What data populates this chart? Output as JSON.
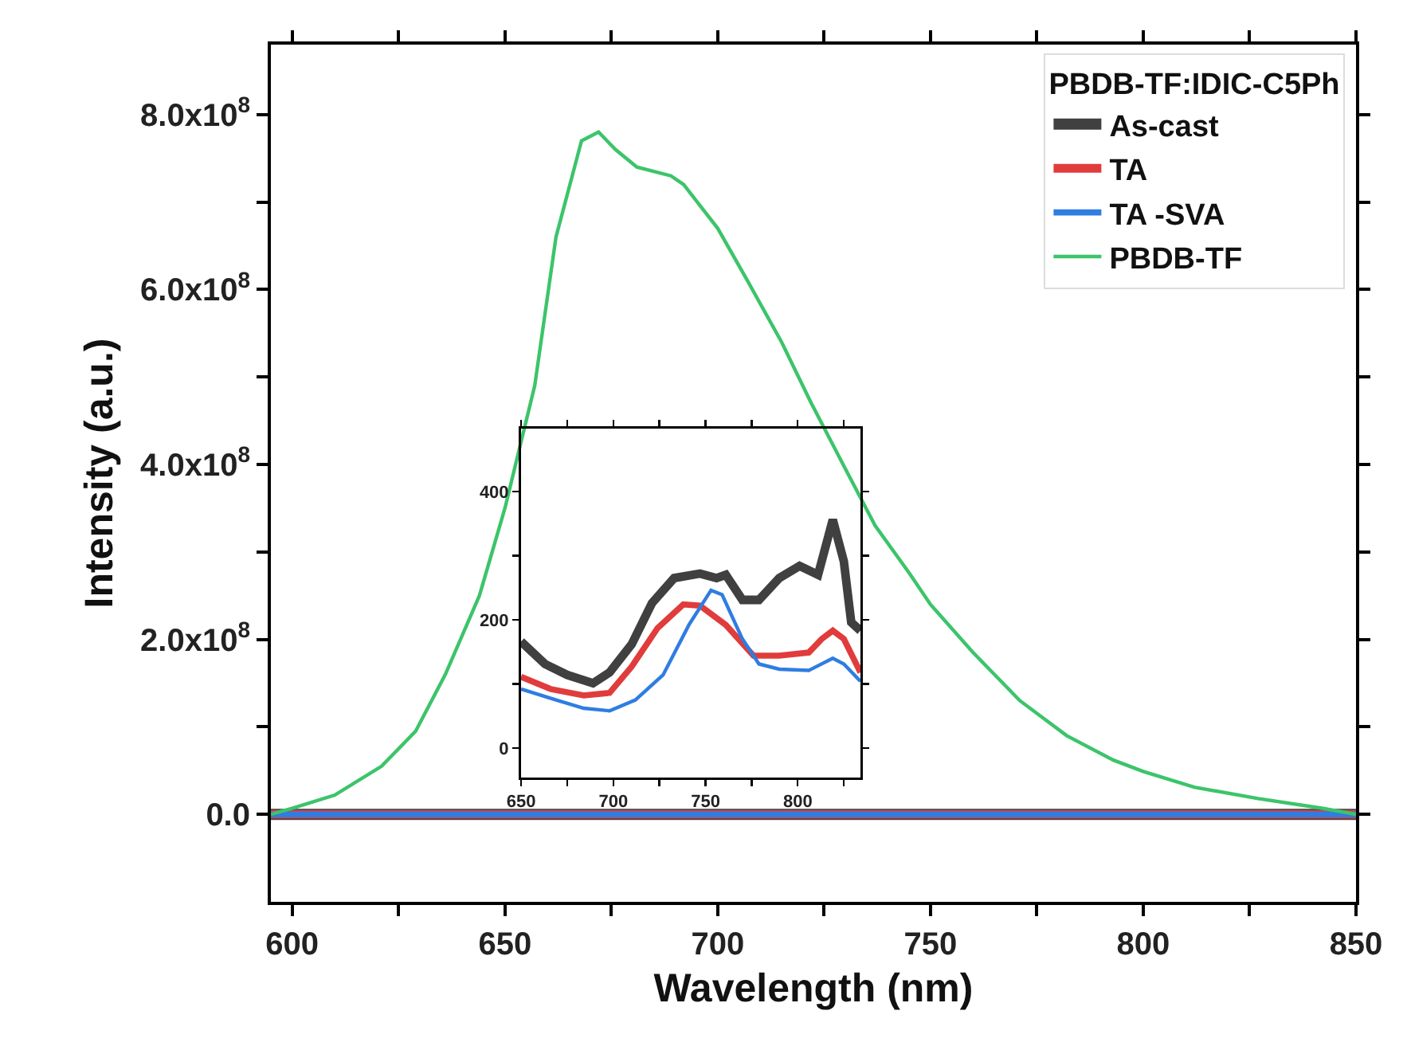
{
  "chart_data": [
    {
      "type": "line",
      "xlabel": "Wavelength (nm)",
      "ylabel": "Intensity (a.u.)",
      "legend_title": "PBDB-TF:IDIC-C5Ph",
      "legend": "top right",
      "grid": false,
      "xlim": [
        595,
        850
      ],
      "ylim": [
        -100000000,
        880000000
      ],
      "xticks": [
        600,
        {
          "value": 625,
          "label": null
        },
        650,
        {
          "value": 675,
          "label": null
        },
        700,
        {
          "value": 725,
          "label": null
        },
        750,
        {
          "value": 775,
          "label": null
        },
        800,
        {
          "value": 825,
          "label": null
        },
        850
      ],
      "yticks": [
        {
          "value": 0,
          "label": "0.0"
        },
        {
          "value": 100000000,
          "label": null
        },
        {
          "value": 200000000,
          "label": "2.0x10$^{8}$"
        },
        {
          "value": 300000000,
          "label": null
        },
        {
          "value": 400000000,
          "label": "4.0x10$^{8}$"
        },
        {
          "value": 500000000,
          "label": null
        },
        {
          "value": 600000000,
          "label": "6.0x10$^{8}$"
        },
        {
          "value": 700000000,
          "label": null
        },
        {
          "value": 800000000,
          "label": "8.0x10$^{8}$"
        }
      ],
      "series": [
        {
          "name": "As-cast",
          "color": "#404040",
          "x": [
            595,
            650,
            700,
            750,
            800,
            850
          ],
          "values": [
            0,
            0,
            0,
            0,
            0,
            0
          ]
        },
        {
          "name": "TA",
          "color": "#e03c3c",
          "x": [
            595,
            650,
            700,
            750,
            800,
            850
          ],
          "values": [
            0,
            0,
            0,
            0,
            0,
            0
          ]
        },
        {
          "name": "TA -SVA",
          "color": "#2f7de1",
          "x": [
            595,
            650,
            700,
            750,
            800,
            850
          ],
          "values": [
            0,
            0,
            0,
            0,
            0,
            0
          ]
        },
        {
          "name": "PBDB-TF",
          "color": "#3cc46a",
          "x": [
            595,
            600,
            610,
            621,
            629,
            636,
            644,
            650,
            657,
            662,
            668,
            672,
            676,
            681,
            689,
            692,
            700,
            707,
            715,
            722,
            730,
            737,
            745,
            750,
            760,
            771,
            782,
            793,
            800,
            812,
            827,
            842,
            850
          ],
          "values": [
            0,
            7000000,
            22000000,
            55000000,
            95000000,
            160000000,
            250000000,
            350000000,
            490000000,
            660000000,
            770000000,
            780000000,
            760000000,
            740000000,
            730000000,
            720000000,
            670000000,
            610000000,
            540000000,
            470000000,
            395000000,
            330000000,
            276000000,
            240000000,
            185000000,
            130000000,
            90000000,
            62000000,
            49000000,
            31000000,
            18000000,
            7000000,
            0
          ]
        }
      ]
    },
    {
      "type": "line",
      "legend": false,
      "grid": false,
      "xlim": [
        650,
        834
      ],
      "ylim": [
        -46,
        498
      ],
      "xticks": [
        650,
        {
          "value": 675,
          "label": null
        },
        700,
        {
          "value": 725,
          "label": null
        },
        750,
        {
          "value": 775,
          "label": null
        },
        800,
        {
          "value": 825,
          "label": null
        }
      ],
      "yticks": [
        0,
        {
          "value": 100,
          "label": null
        },
        200,
        {
          "value": 300,
          "label": null
        },
        400
      ],
      "series": [
        {
          "color": "#404040",
          "x": [
            650,
            663,
            675,
            689,
            698,
            710,
            721,
            733,
            747,
            756,
            761,
            770,
            779,
            790,
            801,
            811,
            819,
            825,
            829,
            834
          ],
          "values": [
            166,
            131,
            114,
            101,
            118,
            162,
            226,
            265,
            272,
            265,
            270,
            231,
            231,
            265,
            284,
            270,
            356,
            291,
            196,
            183
          ]
        },
        {
          "color": "#e03c3c",
          "x": [
            650,
            666,
            684,
            698,
            710,
            724,
            738,
            747,
            761,
            776,
            790,
            806,
            813,
            819,
            825,
            834
          ],
          "values": [
            111,
            92,
            82,
            86,
            127,
            187,
            224,
            222,
            192,
            144,
            144,
            149,
            170,
            183,
            170,
            118
          ]
        },
        {
          "color": "#2f7de1",
          "x": [
            650,
            669,
            684,
            698,
            712,
            727,
            741,
            753,
            759,
            770,
            779,
            790,
            806,
            819,
            825,
            834
          ],
          "values": [
            92,
            75,
            62,
            58,
            75,
            114,
            192,
            246,
            239,
            170,
            131,
            123,
            121,
            140,
            131,
            104
          ]
        }
      ]
    }
  ]
}
